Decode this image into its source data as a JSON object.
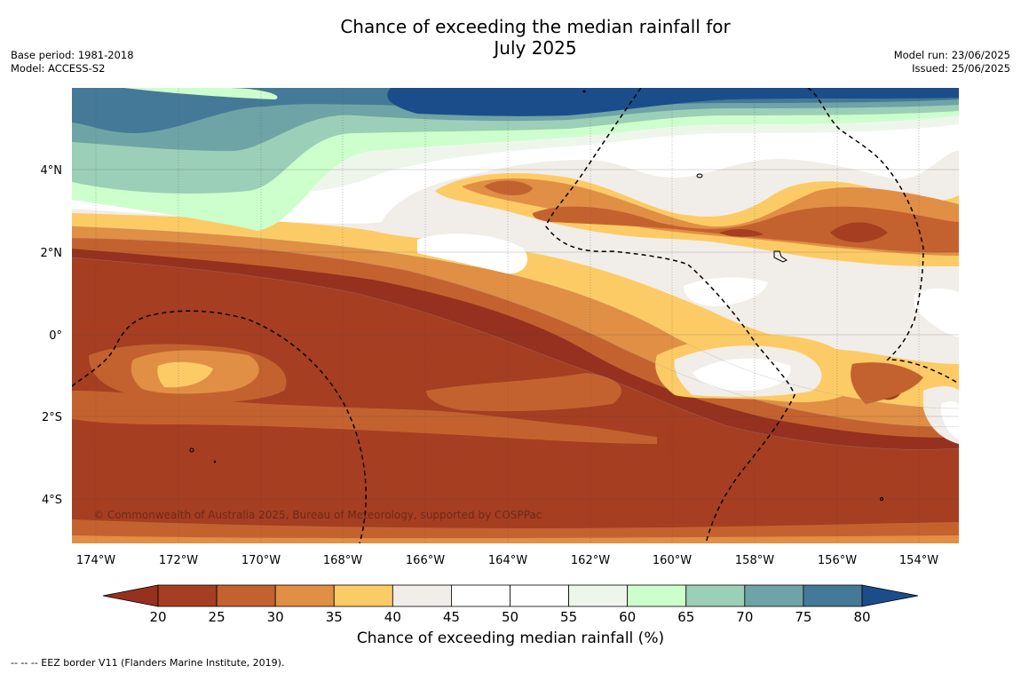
{
  "title": {
    "line1": "Chance of exceeding the median rainfall for",
    "line2": "July 2025"
  },
  "meta_left": {
    "base_period": "Base period: 1981-2018",
    "model": "Model: ACCESS-S2"
  },
  "meta_right": {
    "model_run": "Model run: 23/06/2025",
    "issued": "Issued: 25/06/2025"
  },
  "map": {
    "copyright": "© Commonwealth of Australia 2025, Bureau of Meteorology, supported by COSPPac",
    "lon_labels": [
      "174°W",
      "172°W",
      "170°W",
      "168°W",
      "166°W",
      "164°W",
      "162°W",
      "160°W",
      "158°W",
      "156°W",
      "154°W"
    ],
    "lat_labels": [
      "4°N",
      "2°N",
      "0°",
      "2°S",
      "4°S"
    ]
  },
  "colorbar": {
    "ticks": [
      "20",
      "25",
      "30",
      "35",
      "40",
      "45",
      "50",
      "55",
      "60",
      "65",
      "70",
      "75",
      "80"
    ],
    "colors": [
      "#a63e22",
      "#c4622f",
      "#e08f45",
      "#fdcb66",
      "#f1ede8",
      "#ffffff",
      "#ffffff",
      "#eef6ec",
      "#ccffcc",
      "#9bcfb7",
      "#6fa4a6",
      "#457998",
      "#1a4d8a"
    ],
    "low_extend_color": "#96311f",
    "title": "Chance of exceeding median rainfall (%)"
  },
  "legend_note": "--  --  -- EEZ border V11 (Flanders Marine Institute, 2019)."
}
